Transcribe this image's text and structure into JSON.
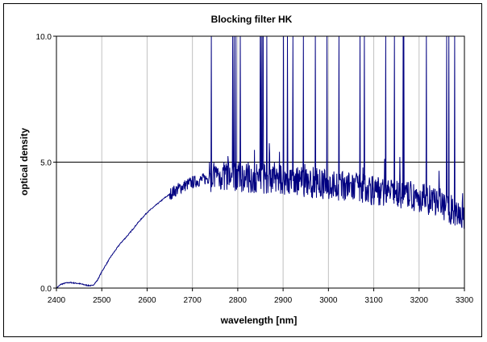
{
  "chart_data": {
    "type": "line",
    "title": "Blocking filter HK",
    "xlabel": "wavelength [nm]",
    "ylabel": "optical density",
    "xlim": [
      2400,
      3300
    ],
    "ylim": [
      0,
      10
    ],
    "x_ticks": [
      "2400",
      "2500",
      "2600",
      "2700",
      "2800",
      "2900",
      "3000",
      "3100",
      "3200",
      "3300"
    ],
    "y_ticks": [
      "0.0",
      "5.0",
      "10.0"
    ],
    "grid": {
      "vertical": true,
      "horizontal": true
    },
    "line_color": "#000080",
    "series": [
      {
        "x": [
          2400,
          2410,
          2420,
          2430,
          2440,
          2450,
          2460,
          2470,
          2480,
          2490,
          2500,
          2510,
          2520,
          2530,
          2540,
          2550,
          2560,
          2580,
          2600,
          2620,
          2640,
          2660,
          2680,
          2700,
          2720,
          2740,
          2760,
          2780,
          2800,
          2850,
          2900,
          2950,
          3000,
          3050,
          3100,
          3150,
          3200,
          3250,
          3280,
          3300
        ],
        "values": [
          0.0,
          0.15,
          0.2,
          0.22,
          0.2,
          0.18,
          0.14,
          0.1,
          0.1,
          0.3,
          0.65,
          0.95,
          1.25,
          1.5,
          1.75,
          1.95,
          2.15,
          2.6,
          3.0,
          3.3,
          3.6,
          3.85,
          4.05,
          4.2,
          4.3,
          4.4,
          4.45,
          4.45,
          4.4,
          4.35,
          4.3,
          4.2,
          4.1,
          4.0,
          3.9,
          3.75,
          3.6,
          3.35,
          3.0,
          2.9
        ]
      }
    ],
    "spikes_to_ceiling_from_wavelength": 2740
  }
}
